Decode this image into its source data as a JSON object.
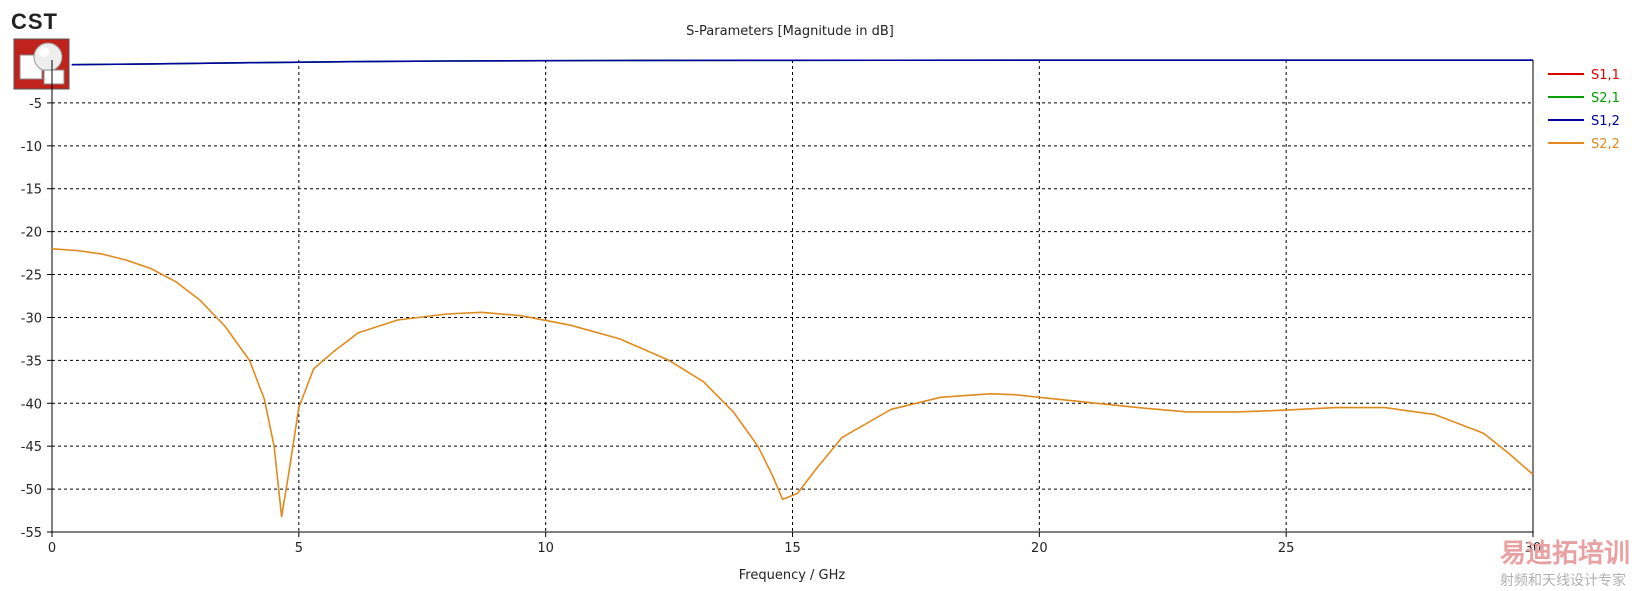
{
  "logo": {
    "text": "CST",
    "icon": "cst-logo-icon"
  },
  "watermark": {
    "line1": "易迪拓培训",
    "line2": "射频和天线设计专家"
  },
  "chart_data": {
    "type": "line",
    "title": "S-Parameters [Magnitude in dB]",
    "xlabel": "Frequency / GHz",
    "ylabel": "",
    "xlim": [
      0,
      30
    ],
    "ylim": [
      -55,
      0
    ],
    "grid": true,
    "legend_placement": "right",
    "x_ticks": [
      "0",
      "5",
      "10",
      "15",
      "20",
      "25",
      "30"
    ],
    "y_ticks": [
      "-5",
      "-10",
      "-15",
      "-20",
      "-25",
      "-30",
      "-35",
      "-40",
      "-45",
      "-50",
      "-55"
    ],
    "x_tick_values": [
      0,
      5,
      10,
      15,
      20,
      25,
      30
    ],
    "y_tick_values": [
      -5,
      -10,
      -15,
      -20,
      -25,
      -30,
      -35,
      -40,
      -45,
      -50,
      -55
    ],
    "series": [
      {
        "name": "S1,1",
        "color": "#e00000",
        "points": []
      },
      {
        "name": "S2,1",
        "color": "#00a000",
        "points": [
          [
            0.4,
            -0.55
          ],
          [
            2,
            -0.45
          ],
          [
            4,
            -0.32
          ],
          [
            6,
            -0.2
          ],
          [
            8,
            -0.12
          ],
          [
            11.3,
            -0.06
          ],
          [
            15,
            -0.03
          ],
          [
            20,
            -0.02
          ],
          [
            25,
            -0.02
          ],
          [
            30,
            -0.02
          ]
        ]
      },
      {
        "name": "S1,2",
        "color": "#0000a0",
        "points": [
          [
            0.4,
            -0.55
          ],
          [
            2,
            -0.45
          ],
          [
            4,
            -0.32
          ],
          [
            6,
            -0.2
          ],
          [
            8,
            -0.12
          ],
          [
            11.3,
            -0.06
          ],
          [
            15,
            -0.03
          ],
          [
            20,
            -0.02
          ],
          [
            25,
            -0.02
          ],
          [
            30,
            -0.02
          ]
        ]
      },
      {
        "name": "S2,2",
        "color": "#e08a1e",
        "points": [
          [
            0,
            -22.0
          ],
          [
            0.5,
            -22.2
          ],
          [
            1,
            -22.6
          ],
          [
            1.5,
            -23.3
          ],
          [
            2,
            -24.3
          ],
          [
            2.5,
            -25.8
          ],
          [
            3,
            -28.0
          ],
          [
            3.5,
            -31.0
          ],
          [
            4,
            -35.0
          ],
          [
            4.3,
            -39.5
          ],
          [
            4.5,
            -45.0
          ],
          [
            4.65,
            -53.2
          ],
          [
            4.8,
            -48.0
          ],
          [
            5.0,
            -40.5
          ],
          [
            5.3,
            -36.0
          ],
          [
            5.7,
            -34.0
          ],
          [
            6.2,
            -31.8
          ],
          [
            7,
            -30.3
          ],
          [
            8,
            -29.6
          ],
          [
            8.7,
            -29.4
          ],
          [
            9.5,
            -29.8
          ],
          [
            10.5,
            -30.9
          ],
          [
            11.5,
            -32.5
          ],
          [
            12.5,
            -35.0
          ],
          [
            13.2,
            -37.5
          ],
          [
            13.8,
            -41.0
          ],
          [
            14.3,
            -45.0
          ],
          [
            14.6,
            -48.5
          ],
          [
            14.8,
            -51.2
          ],
          [
            15.1,
            -50.5
          ],
          [
            15.5,
            -47.5
          ],
          [
            16,
            -44.0
          ],
          [
            17,
            -40.7
          ],
          [
            18,
            -39.3
          ],
          [
            19,
            -38.9
          ],
          [
            19.5,
            -39.0
          ],
          [
            20,
            -39.3
          ],
          [
            21,
            -39.9
          ],
          [
            22,
            -40.5
          ],
          [
            23,
            -41.0
          ],
          [
            24,
            -41.0
          ],
          [
            25,
            -40.8
          ],
          [
            26,
            -40.5
          ],
          [
            27,
            -40.5
          ],
          [
            28,
            -41.3
          ],
          [
            29,
            -43.5
          ],
          [
            29.5,
            -45.8
          ],
          [
            30,
            -48.3
          ]
        ]
      }
    ]
  }
}
